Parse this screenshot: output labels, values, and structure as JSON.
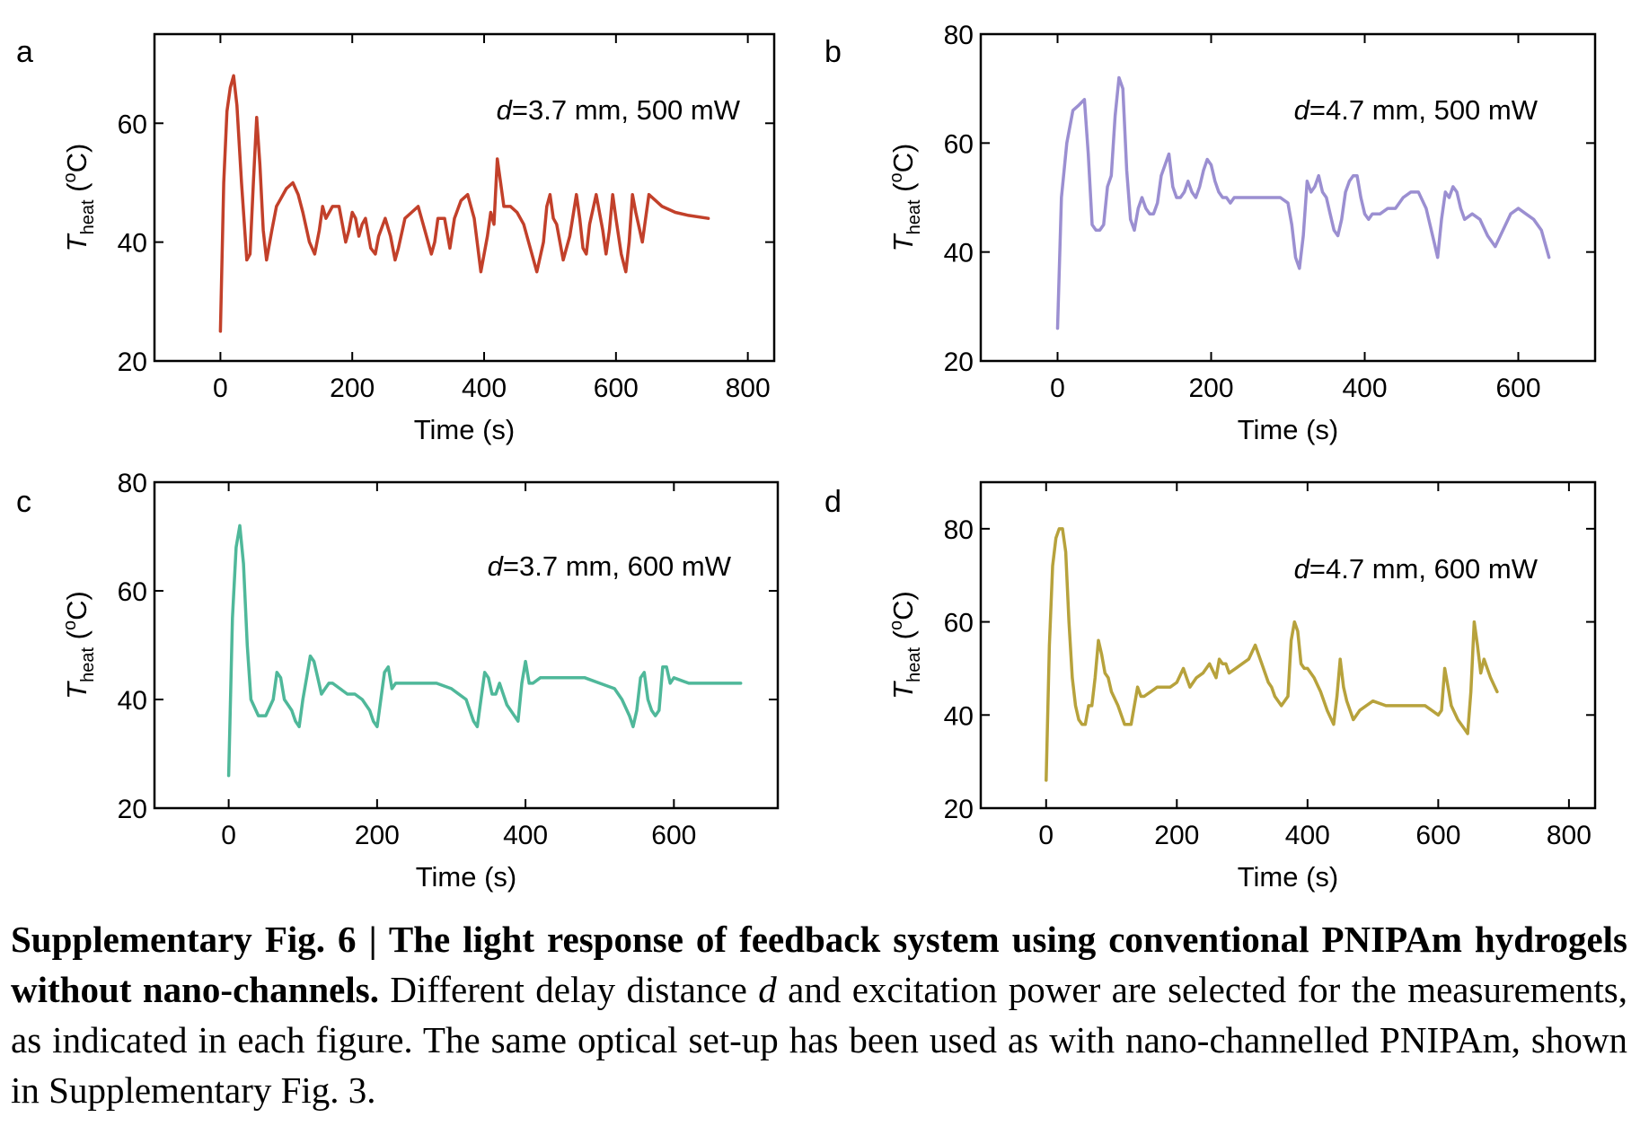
{
  "figure": {
    "caption_bold": "Supplementary Fig. 6 | The light response of feedback system using conventional PNIPAm hydrogels without nano-channels.",
    "caption_parts": [
      " Different delay distance ",
      "d",
      " and excitation power are selected for the measurements, as indicated in each figure. The same optical set-up has been used as with nano-channelled PNIPAm, shown in Supplementary Fig. 3."
    ]
  },
  "chart_data": [
    {
      "panel": "a",
      "type": "line",
      "annotation_italic": "d",
      "annotation": "=3.7 mm, 500 mW",
      "xlabel": "Time (s)",
      "ylabel_main": "T",
      "ylabel_sub": "heat",
      "ylabel_unit_pre": " (",
      "ylabel_unit_sup": "o",
      "ylabel_unit_post": "C)",
      "xlim": [
        -100,
        840
      ],
      "ylim": [
        20,
        75
      ],
      "xticks": [
        0,
        200,
        400,
        600,
        800
      ],
      "yticks": [
        20,
        40,
        60
      ],
      "color": "#c2402a",
      "series": [
        {
          "x": [
            0,
            5,
            10,
            15,
            20,
            25,
            32,
            40,
            45,
            50,
            55,
            60,
            65,
            70,
            78,
            85,
            90,
            100,
            110,
            118,
            125,
            135,
            143,
            150,
            155,
            160,
            170,
            180,
            185,
            190,
            195,
            200,
            205,
            210,
            215,
            220,
            228,
            235,
            240,
            250,
            258,
            265,
            270,
            280,
            290,
            300,
            310,
            320,
            325,
            330,
            340,
            348,
            355,
            365,
            375,
            385,
            395,
            405,
            410,
            415,
            420,
            425,
            430,
            440,
            450,
            460,
            470,
            480,
            490,
            495,
            500,
            505,
            510,
            520,
            530,
            540,
            545,
            550,
            555,
            560,
            570,
            580,
            585,
            590,
            595,
            600,
            608,
            615,
            620,
            625,
            630,
            640,
            650,
            660,
            670,
            690,
            710,
            740
          ],
          "y": [
            25,
            50,
            62,
            66,
            68,
            63,
            50,
            37,
            38,
            50,
            61,
            53,
            42,
            37,
            42,
            46,
            47,
            49,
            50,
            48,
            45,
            40,
            38,
            42,
            46,
            44,
            46,
            46,
            43,
            40,
            42,
            45,
            44,
            41,
            43,
            44,
            39,
            38,
            41,
            44,
            41,
            37,
            39,
            44,
            45,
            46,
            42,
            38,
            40,
            44,
            44,
            39,
            44,
            47,
            48,
            44,
            35,
            41,
            45,
            43,
            54,
            50,
            46,
            46,
            45,
            43,
            39,
            35,
            40,
            46,
            48,
            44,
            43,
            37,
            41,
            48,
            44,
            39,
            38,
            43,
            48,
            42,
            38,
            42,
            48,
            44,
            38,
            35,
            40,
            48,
            45,
            40,
            48,
            47,
            46,
            45,
            44.5,
            44
          ]
        }
      ]
    },
    {
      "panel": "b",
      "type": "line",
      "annotation_italic": "d",
      "annotation": "=4.7 mm, 500 mW",
      "xlabel": "Time (s)",
      "ylabel_main": "T",
      "ylabel_sub": "heat",
      "ylabel_unit_pre": " (",
      "ylabel_unit_sup": "o",
      "ylabel_unit_post": "C)",
      "xlim": [
        -100,
        700
      ],
      "ylim": [
        20,
        80
      ],
      "xticks": [
        0,
        200,
        400,
        600
      ],
      "yticks": [
        20,
        40,
        60,
        80
      ],
      "color": "#9b8fd1",
      "series": [
        {
          "x": [
            0,
            5,
            12,
            20,
            28,
            35,
            40,
            45,
            50,
            55,
            60,
            65,
            70,
            75,
            80,
            85,
            90,
            95,
            100,
            105,
            110,
            115,
            120,
            125,
            130,
            135,
            140,
            145,
            150,
            155,
            160,
            165,
            170,
            175,
            180,
            185,
            190,
            195,
            200,
            205,
            210,
            215,
            220,
            225,
            230,
            240,
            250,
            260,
            270,
            280,
            290,
            300,
            305,
            310,
            315,
            320,
            325,
            330,
            335,
            340,
            345,
            350,
            355,
            360,
            365,
            370,
            375,
            380,
            385,
            390,
            395,
            400,
            405,
            410,
            420,
            430,
            440,
            450,
            460,
            470,
            480,
            490,
            495,
            500,
            505,
            510,
            515,
            520,
            525,
            530,
            540,
            550,
            560,
            570,
            580,
            590,
            600,
            610,
            620,
            630,
            640
          ],
          "y": [
            26,
            50,
            60,
            66,
            67,
            68,
            58,
            45,
            44,
            44,
            45,
            52,
            54,
            65,
            72,
            70,
            55,
            46,
            44,
            48,
            50,
            48,
            47,
            47,
            49,
            54,
            56,
            58,
            52,
            50,
            50,
            51,
            53,
            51,
            50,
            52,
            55,
            57,
            56,
            53,
            51,
            50,
            50,
            49,
            50,
            50,
            50,
            50,
            50,
            50,
            50,
            49,
            45,
            39,
            37,
            43,
            53,
            51,
            52,
            54,
            51,
            50,
            47,
            44,
            43,
            46,
            51,
            53,
            54,
            54,
            50,
            47,
            46,
            47,
            47,
            48,
            48,
            50,
            51,
            51,
            48,
            42,
            39,
            46,
            51,
            50,
            52,
            51,
            48,
            46,
            47,
            46,
            43,
            41,
            44,
            47,
            48,
            47,
            46,
            44,
            39
          ]
        }
      ]
    },
    {
      "panel": "c",
      "type": "line",
      "annotation_italic": "d",
      "annotation": "=3.7 mm, 600 mW",
      "xlabel": "Time (s)",
      "ylabel_main": "T",
      "ylabel_sub": "heat",
      "ylabel_unit_pre": " (",
      "ylabel_unit_sup": "o",
      "ylabel_unit_post": "C)",
      "xlim": [
        -100,
        740
      ],
      "ylim": [
        20,
        80
      ],
      "xticks": [
        0,
        200,
        400,
        600
      ],
      "yticks": [
        20,
        40,
        60,
        80
      ],
      "color": "#4fb89a",
      "series": [
        {
          "x": [
            0,
            5,
            10,
            15,
            20,
            25,
            30,
            40,
            50,
            60,
            65,
            70,
            75,
            80,
            85,
            90,
            95,
            100,
            105,
            110,
            115,
            120,
            125,
            130,
            135,
            140,
            150,
            160,
            170,
            180,
            190,
            195,
            200,
            205,
            210,
            215,
            220,
            225,
            230,
            240,
            260,
            280,
            300,
            320,
            325,
            330,
            335,
            340,
            345,
            350,
            355,
            360,
            365,
            370,
            375,
            380,
            390,
            395,
            400,
            405,
            410,
            420,
            440,
            460,
            480,
            500,
            520,
            530,
            540,
            545,
            550,
            555,
            560,
            565,
            570,
            575,
            580,
            585,
            590,
            595,
            600,
            620,
            640,
            660,
            690
          ],
          "y": [
            26,
            55,
            68,
            72,
            65,
            50,
            40,
            37,
            37,
            40,
            45,
            44,
            40,
            39,
            38,
            36,
            35,
            40,
            44,
            48,
            47,
            44,
            41,
            42,
            43,
            43,
            42,
            41,
            41,
            40,
            38,
            36,
            35,
            40,
            45,
            46,
            42,
            43,
            43,
            43,
            43,
            43,
            42,
            40,
            38,
            36,
            35,
            40,
            45,
            44,
            41,
            41,
            43,
            41,
            39,
            38,
            36,
            43,
            47,
            43,
            43,
            44,
            44,
            44,
            44,
            43,
            42,
            40,
            37,
            35,
            38,
            44,
            45,
            40,
            38,
            37,
            38,
            46,
            46,
            43,
            44,
            43,
            43,
            43,
            43
          ]
        }
      ]
    },
    {
      "panel": "d",
      "type": "line",
      "annotation_italic": "d",
      "annotation": "=4.7 mm, 600 mW",
      "xlabel": "Time (s)",
      "ylabel_main": "T",
      "ylabel_sub": "heat",
      "ylabel_unit_pre": " (",
      "ylabel_unit_sup": "o",
      "ylabel_unit_post": "C)",
      "xlim": [
        -100,
        840
      ],
      "ylim": [
        20,
        90
      ],
      "xticks": [
        0,
        200,
        400,
        600,
        800
      ],
      "yticks": [
        20,
        40,
        60,
        80
      ],
      "color": "#b7a23c",
      "series": [
        {
          "x": [
            0,
            5,
            10,
            15,
            20,
            25,
            30,
            35,
            40,
            45,
            50,
            55,
            60,
            65,
            70,
            75,
            80,
            85,
            90,
            95,
            100,
            110,
            120,
            130,
            140,
            145,
            150,
            160,
            170,
            180,
            190,
            200,
            210,
            215,
            220,
            230,
            240,
            250,
            260,
            265,
            270,
            275,
            280,
            290,
            300,
            310,
            320,
            330,
            340,
            345,
            350,
            360,
            370,
            375,
            380,
            385,
            390,
            395,
            400,
            410,
            420,
            430,
            440,
            445,
            450,
            455,
            460,
            470,
            480,
            500,
            520,
            540,
            560,
            580,
            590,
            600,
            605,
            610,
            615,
            620,
            630,
            640,
            645,
            650,
            655,
            660,
            665,
            670,
            680,
            690
          ],
          "y": [
            26,
            55,
            72,
            78,
            80,
            80,
            75,
            60,
            48,
            42,
            39,
            38,
            38,
            42,
            42,
            48,
            56,
            53,
            49,
            48,
            45,
            42,
            38,
            38,
            46,
            44,
            44,
            45,
            46,
            46,
            46,
            47,
            50,
            48,
            46,
            48,
            49,
            51,
            48,
            52,
            51,
            51,
            49,
            50,
            51,
            52,
            55,
            51,
            47,
            46,
            44,
            42,
            44,
            56,
            60,
            58,
            51,
            50,
            50,
            48,
            45,
            41,
            38,
            44,
            52,
            46,
            43,
            39,
            41,
            43,
            42,
            42,
            42,
            42,
            41,
            40,
            41,
            50,
            46,
            42,
            39,
            37,
            36,
            45,
            60,
            55,
            49,
            52,
            48,
            45
          ]
        }
      ]
    }
  ]
}
